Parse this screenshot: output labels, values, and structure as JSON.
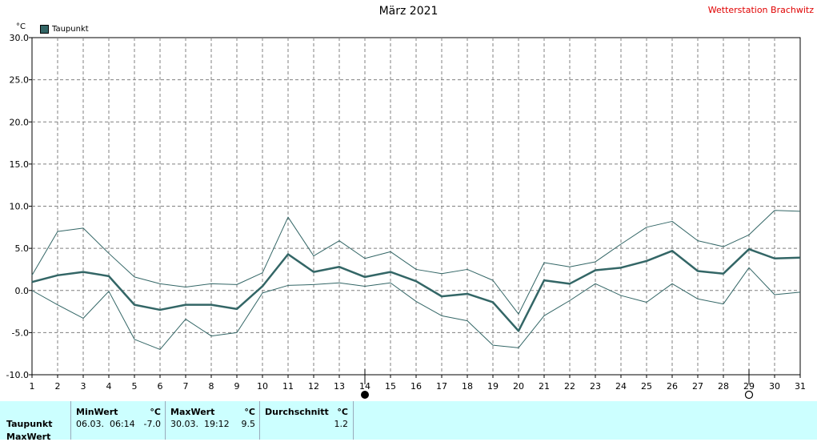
{
  "title": "März 2021",
  "station": "Wetterstation Brachwitz",
  "unit": "°C",
  "legend_label": "Taupunkt",
  "colors": {
    "series": "#336666",
    "station_text": "#e00000",
    "panel_bg": "#ccffff"
  },
  "chart_data": {
    "type": "line",
    "title": "März 2021",
    "ylabel": "°C",
    "ylim": [
      -10,
      30
    ],
    "y_ticks": [
      "30.0",
      "25.0",
      "20.0",
      "15.0",
      "10.0",
      "5.0",
      "0.0",
      "-5.0",
      "-10.0"
    ],
    "x": [
      1,
      2,
      3,
      4,
      5,
      6,
      7,
      8,
      9,
      10,
      11,
      12,
      13,
      14,
      15,
      16,
      17,
      18,
      19,
      20,
      21,
      22,
      23,
      24,
      25,
      26,
      27,
      28,
      29,
      30,
      31
    ],
    "grid": true,
    "legend_position": "top-left",
    "series": [
      {
        "name": "Taupunkt",
        "values": [
          1.0,
          1.8,
          2.2,
          1.7,
          -1.7,
          -2.3,
          -1.7,
          -1.7,
          -2.2,
          0.5,
          4.3,
          2.2,
          2.8,
          1.6,
          2.2,
          1.1,
          -0.7,
          -0.4,
          -1.4,
          -4.8,
          1.2,
          0.8,
          2.4,
          2.7,
          3.5,
          4.7,
          2.3,
          2.0,
          4.9,
          3.8,
          3.9
        ]
      },
      {
        "name": "",
        "values": [
          1.8,
          7.0,
          7.4,
          4.4,
          1.6,
          0.8,
          0.4,
          0.8,
          0.7,
          2.1,
          8.7,
          4.1,
          5.9,
          3.8,
          4.6,
          2.5,
          2.0,
          2.5,
          1.2,
          -2.8,
          3.3,
          2.8,
          3.4,
          5.5,
          7.5,
          8.2,
          5.9,
          5.2,
          6.6,
          9.5,
          9.4
        ]
      },
      {
        "name": "",
        "values": [
          0.0,
          -1.7,
          -3.3,
          -0.1,
          -5.8,
          -7.0,
          -3.4,
          -5.4,
          -5.0,
          -0.3,
          0.6,
          0.7,
          0.9,
          0.5,
          0.9,
          -1.3,
          -3.0,
          -3.6,
          -6.5,
          -6.8,
          -3.0,
          -1.2,
          0.8,
          -0.6,
          -1.4,
          0.8,
          -1.0,
          -1.6,
          2.7,
          -0.5,
          -0.2
        ]
      }
    ],
    "markers": [
      {
        "day": 14,
        "symbol": "full-moon"
      },
      {
        "day": 29,
        "symbol": "new-moon"
      }
    ]
  },
  "stats": {
    "row_labels": [
      "Taupunkt",
      "MaxWert"
    ],
    "min": {
      "header": "MinWert",
      "unit": "°C",
      "when": "06.03.  06:14",
      "value": "-7.0"
    },
    "max": {
      "header": "MaxWert",
      "unit": "°C",
      "when": "30.03.  19:12",
      "value": "9.5"
    },
    "avg": {
      "header": "Durchschnitt",
      "unit": "°C",
      "value": "1.2"
    }
  }
}
